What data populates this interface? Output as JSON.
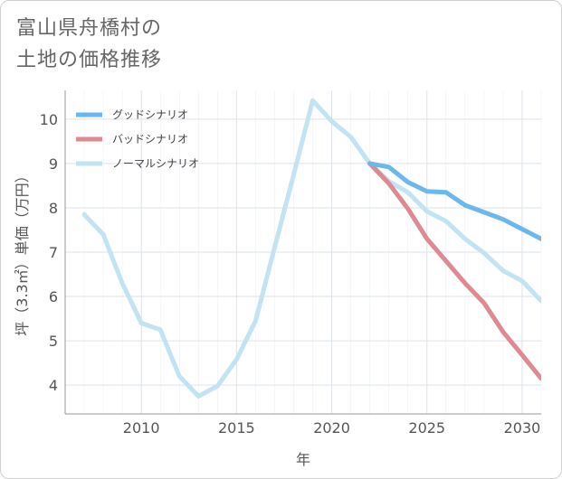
{
  "title_lines": [
    "富山県舟橋村の",
    "土地の価格推移"
  ],
  "colors": {
    "good": "#6bb8ec",
    "bad": "#dd8a93",
    "normal": "#c3e2f2",
    "grid": "#dde3ea",
    "axis": "#999999"
  },
  "chart_data": {
    "type": "line",
    "title": "富山県舟橋村の土地の価格推移",
    "xlabel": "年",
    "ylabel": "坪（3.3㎡）単価（万円）",
    "xlim": [
      2006,
      2031
    ],
    "ylim": [
      3.35,
      10.65
    ],
    "xticks": [
      2010,
      2015,
      2020,
      2025,
      2030
    ],
    "yticks": [
      4,
      5,
      6,
      7,
      8,
      9,
      10
    ],
    "grid": true,
    "legend_position": "top-left",
    "series": [
      {
        "name": "グッドシナリオ",
        "color": "#6bb8ec",
        "x": [
          2022,
          2023,
          2024,
          2025,
          2026,
          2027,
          2028,
          2029,
          2030,
          2031
        ],
        "y": [
          9.0,
          8.92,
          8.58,
          8.37,
          8.35,
          8.06,
          7.9,
          7.74,
          7.52,
          7.3
        ]
      },
      {
        "name": "バッドシナリオ",
        "color": "#dd8a93",
        "x": [
          2022,
          2023,
          2024,
          2025,
          2026,
          2027,
          2028,
          2029,
          2030,
          2031
        ],
        "y": [
          9.0,
          8.55,
          7.98,
          7.3,
          6.8,
          6.3,
          5.85,
          5.2,
          4.68,
          4.15
        ]
      },
      {
        "name": "ノーマルシナリオ",
        "color": "#c3e2f2",
        "x": [
          2007,
          2008,
          2009,
          2010,
          2011,
          2012,
          2013,
          2014,
          2015,
          2016,
          2017,
          2018,
          2019,
          2020,
          2021,
          2022,
          2023,
          2024,
          2025,
          2026,
          2027,
          2028,
          2029,
          2030,
          2031
        ],
        "y": [
          7.85,
          7.4,
          6.3,
          5.4,
          5.25,
          4.2,
          3.75,
          3.98,
          4.58,
          5.45,
          7.1,
          8.75,
          10.42,
          9.95,
          9.6,
          9.0,
          8.6,
          8.35,
          7.92,
          7.7,
          7.3,
          6.98,
          6.58,
          6.35,
          5.9
        ]
      }
    ]
  }
}
